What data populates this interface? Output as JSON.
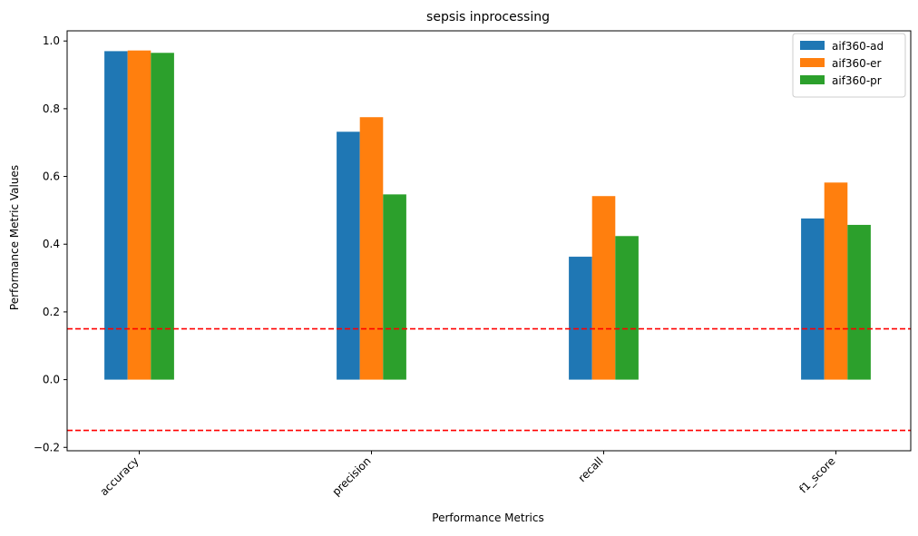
{
  "chart_data": {
    "type": "bar",
    "title": "sepsis inprocessing",
    "xlabel": "Performance Metrics",
    "ylabel": "Performance Metric Values",
    "categories": [
      "accuracy",
      "precision",
      "recall",
      "f1_score"
    ],
    "series": [
      {
        "name": "aif360-ad",
        "color": "#1f77b4",
        "values": [
          0.97,
          0.732,
          0.363,
          0.476
        ]
      },
      {
        "name": "aif360-er",
        "color": "#ff7f0e",
        "values": [
          0.972,
          0.775,
          0.542,
          0.582
        ]
      },
      {
        "name": "aif360-pr",
        "color": "#2ca02c",
        "values": [
          0.965,
          0.547,
          0.424,
          0.457
        ]
      }
    ],
    "ylim": [
      -0.21,
      1.03
    ],
    "yticks": [
      -0.2,
      0.0,
      0.2,
      0.4,
      0.6,
      0.8,
      1.0
    ],
    "ytick_labels": [
      "−0.2",
      "0.0",
      "0.2",
      "0.4",
      "0.6",
      "0.8",
      "1.0"
    ],
    "reference_lines": [
      {
        "y": 0.15,
        "color": "#ff0000",
        "style": "dashed"
      },
      {
        "y": -0.15,
        "color": "#ff0000",
        "style": "dashed"
      }
    ],
    "grid": false,
    "legend_position": "top-right"
  }
}
